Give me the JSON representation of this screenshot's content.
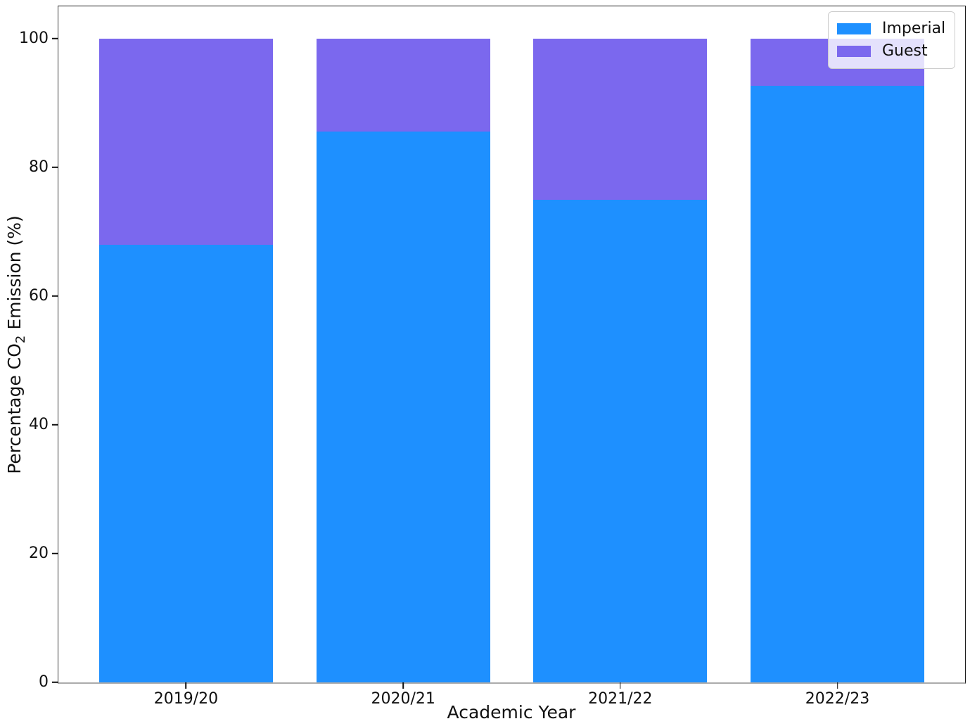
{
  "chart_data": {
    "type": "bar",
    "stacked": true,
    "title": "",
    "xlabel": "Academic Year",
    "ylabel": "Percentage CO2 Emission (%)",
    "ylabel_parts": {
      "prefix": "Percentage CO",
      "sub": "2",
      "suffix": " Emission (%)"
    },
    "categories": [
      "2019/20",
      "2020/21",
      "2021/22",
      "2022/23"
    ],
    "series": [
      {
        "name": "Imperial",
        "color": "#1E90FF",
        "values": [
          68,
          85.5,
          75,
          92.7
        ]
      },
      {
        "name": "Guest",
        "color": "#7B68EE",
        "values": [
          32,
          14.5,
          25,
          7.3
        ]
      }
    ],
    "ylim": [
      0,
      105
    ],
    "yticks": [
      0,
      20,
      40,
      60,
      80,
      100
    ],
    "xlim": [
      -0.588,
      3.588
    ],
    "bar_width": 0.8,
    "grid": false,
    "legend": {
      "position": "upper right",
      "entries": [
        "Imperial",
        "Guest"
      ]
    }
  },
  "colors": {
    "imperial": "#1E90FF",
    "guest": "#7B68EE",
    "background": "#ffffff",
    "text": "#111111",
    "legend_border": "#cccccc"
  }
}
